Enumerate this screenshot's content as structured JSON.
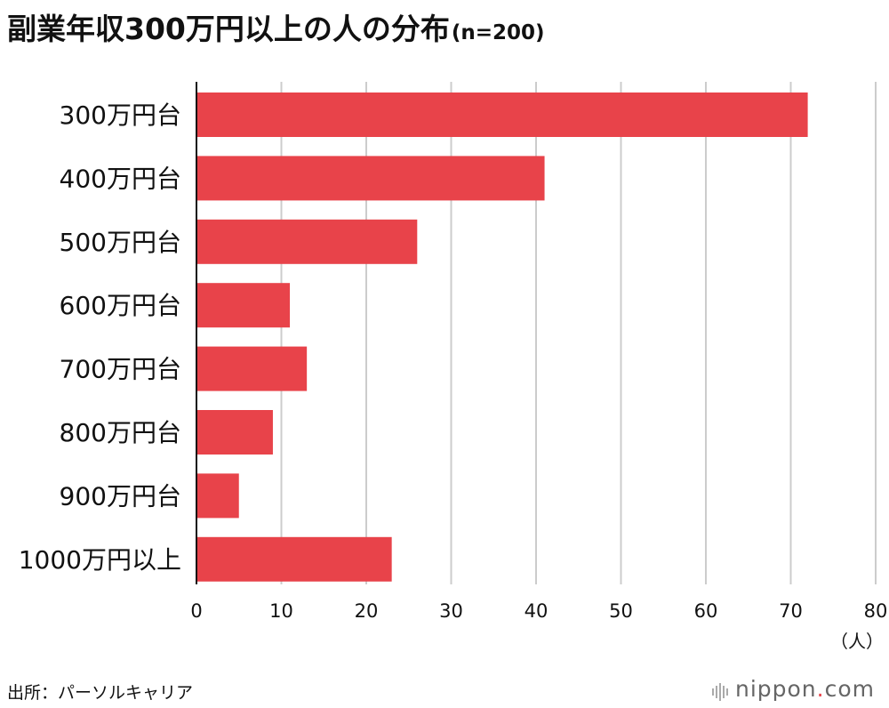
{
  "title": "副業年収300万円以上の人の分布",
  "subtitle": "(n=200)",
  "source": "出所：パーソルキャリア",
  "brand": {
    "name_main": "nippon",
    "name_dot": ".",
    "name_tld": "com",
    "icon": "sound-bars-icon"
  },
  "colors": {
    "bar": "#e8434a",
    "grid": "#cccccc",
    "axis": "#111111"
  },
  "chart_data": {
    "type": "bar",
    "orientation": "horizontal",
    "categories": [
      "300万円台",
      "400万円台",
      "500万円台",
      "600万円台",
      "700万円台",
      "800万円台",
      "900万円台",
      "1000万円以上"
    ],
    "values": [
      72,
      41,
      26,
      11,
      13,
      9,
      5,
      23
    ],
    "xlim": [
      0,
      80
    ],
    "xticks": [
      0,
      10,
      20,
      30,
      40,
      50,
      60,
      70,
      80
    ],
    "xunit": "（人）",
    "grid": true
  }
}
